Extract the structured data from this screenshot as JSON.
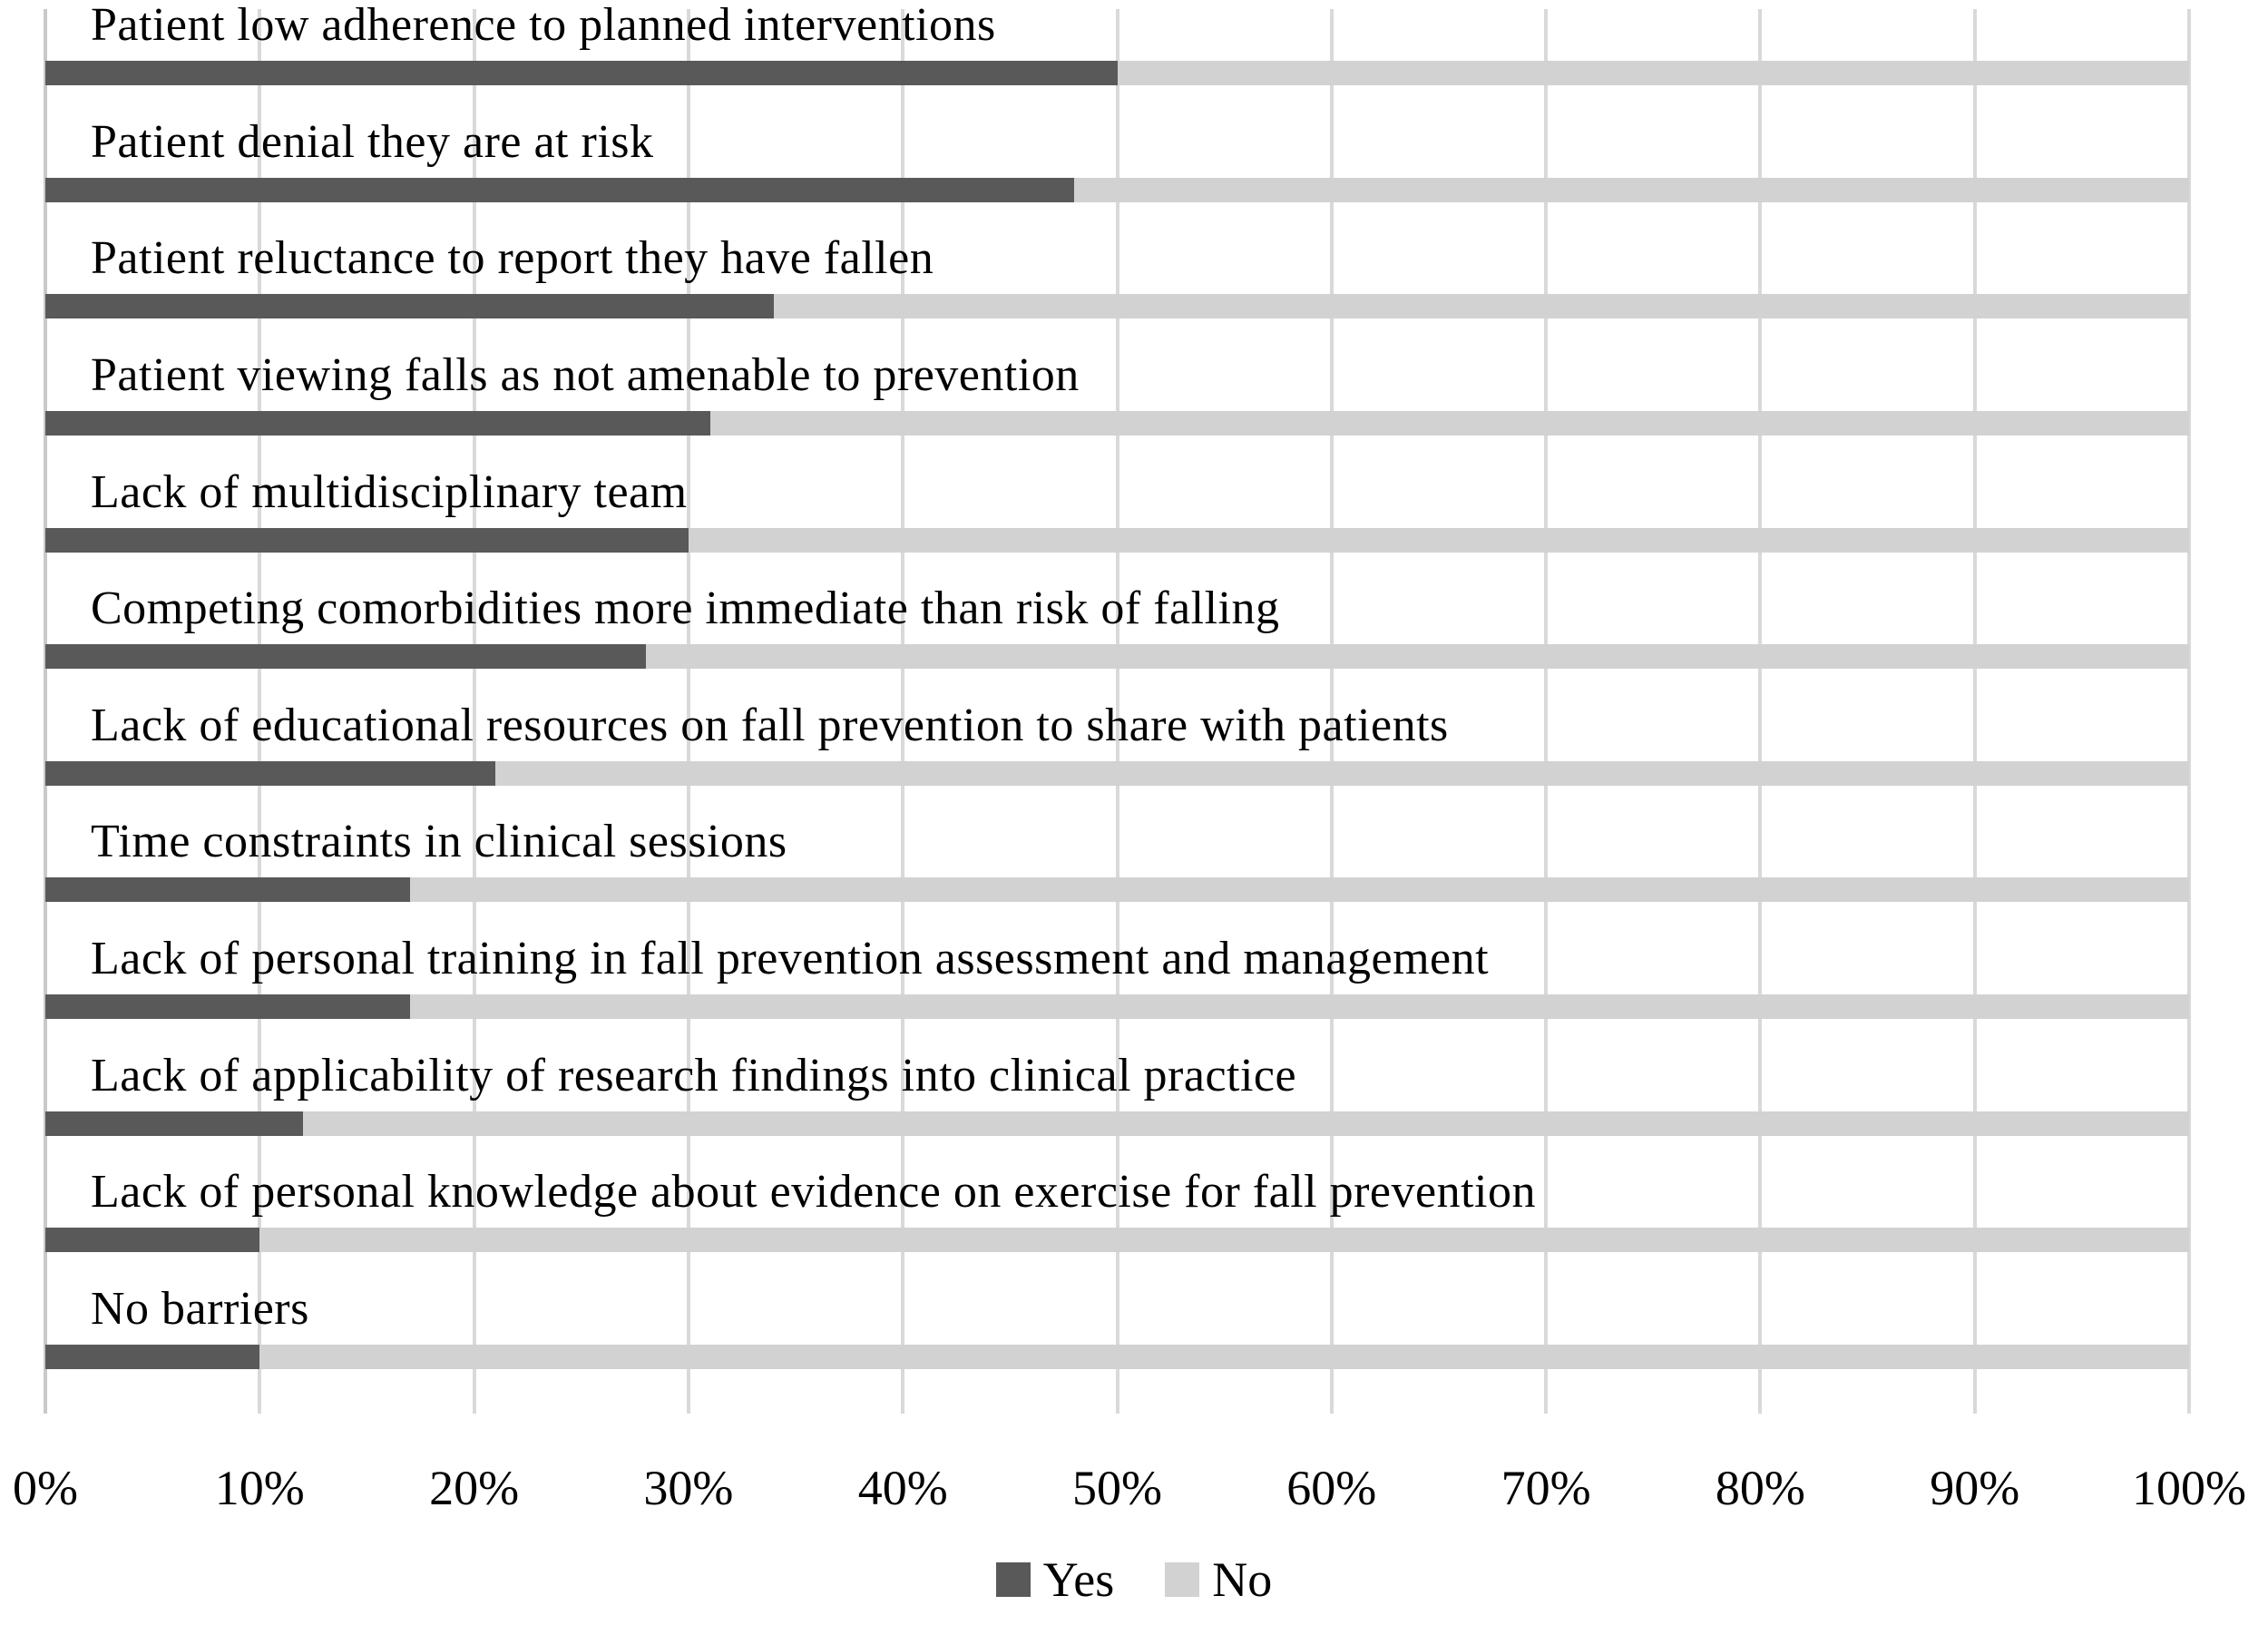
{
  "chart_data": {
    "type": "bar",
    "orientation": "horizontal",
    "stacked": true,
    "unit": "percent",
    "categories": [
      "Patient low adherence to planned interventions",
      "Patient denial they are at risk",
      "Patient reluctance to report they have fallen",
      "Patient viewing falls as not amenable to prevention",
      "Lack of multidisciplinary team",
      "Competing comorbidities more immediate than risk of falling",
      "Lack of educational resources on fall prevention to share with patients",
      "Time constraints in clinical sessions",
      "Lack of personal training in fall prevention assessment and management",
      "Lack of applicability of research findings into clinical practice",
      "Lack of personal knowledge about evidence on exercise for fall prevention",
      "No barriers"
    ],
    "series": [
      {
        "name": "Yes",
        "color": "#595959",
        "values": [
          50,
          48,
          34,
          31,
          30,
          28,
          21,
          17,
          17,
          12,
          10,
          10
        ]
      },
      {
        "name": "No",
        "color": "#d2d2d2",
        "values": [
          50,
          52,
          66,
          69,
          70,
          72,
          79,
          83,
          83,
          88,
          90,
          90
        ]
      }
    ],
    "x_axis": {
      "min": 0,
      "max": 100,
      "tick_labels": [
        "0%",
        "10%",
        "20%",
        "30%",
        "40%",
        "50%",
        "60%",
        "70%",
        "80%",
        "90%",
        "100%"
      ]
    },
    "grid": "vertical",
    "gridline_color": "#d9d9d9",
    "legend": {
      "position": "bottom",
      "entries": [
        "Yes",
        "No"
      ]
    }
  }
}
